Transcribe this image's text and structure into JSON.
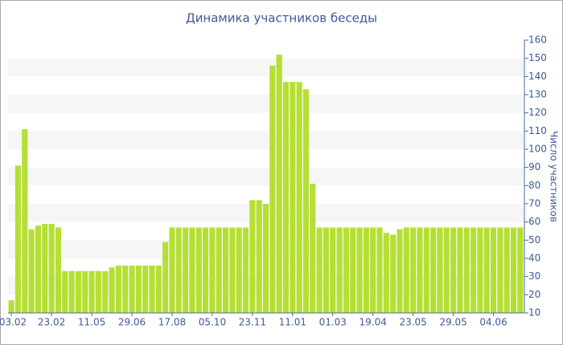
{
  "chart_data": {
    "type": "bar",
    "title": "Динамика участников беседы",
    "y_label": "Число участников",
    "categories": [
      "03.02",
      null,
      null,
      null,
      null,
      null,
      "23.02",
      null,
      null,
      null,
      null,
      null,
      "11.05",
      null,
      null,
      null,
      null,
      null,
      "29.06",
      null,
      null,
      null,
      null,
      null,
      "17.08",
      null,
      null,
      null,
      null,
      null,
      "05.10",
      null,
      null,
      null,
      null,
      null,
      "23.11",
      null,
      null,
      null,
      null,
      null,
      "11.01",
      null,
      null,
      null,
      null,
      null,
      "01.03",
      null,
      null,
      null,
      null,
      null,
      "19.04",
      null,
      null,
      null,
      null,
      null,
      "23.05",
      null,
      null,
      null,
      null,
      null,
      "29.05",
      null,
      null,
      null,
      null,
      null,
      "04.06",
      null,
      null,
      null,
      null
    ],
    "values": [
      17,
      91,
      111,
      56,
      58,
      59,
      59,
      57,
      33,
      33,
      33,
      33,
      33,
      33,
      33,
      35,
      36,
      36,
      36,
      36,
      36,
      36,
      36,
      49,
      57,
      57,
      57,
      57,
      57,
      57,
      57,
      57,
      57,
      57,
      57,
      57,
      72,
      72,
      70,
      146,
      152,
      137,
      137,
      137,
      133,
      81,
      57,
      57,
      57,
      57,
      57,
      57,
      57,
      57,
      57,
      57,
      54,
      53,
      56,
      57,
      57,
      57,
      57,
      57,
      57,
      57,
      57,
      57,
      57,
      57,
      57,
      57,
      57,
      57,
      57,
      57,
      57
    ],
    "color": "#b6df35",
    "ylim": [
      10,
      160
    ],
    "yticks": [
      10,
      20,
      30,
      40,
      50,
      60,
      70,
      80,
      90,
      100,
      110,
      120,
      130,
      140,
      150,
      160
    ],
    "grid": "bands"
  }
}
